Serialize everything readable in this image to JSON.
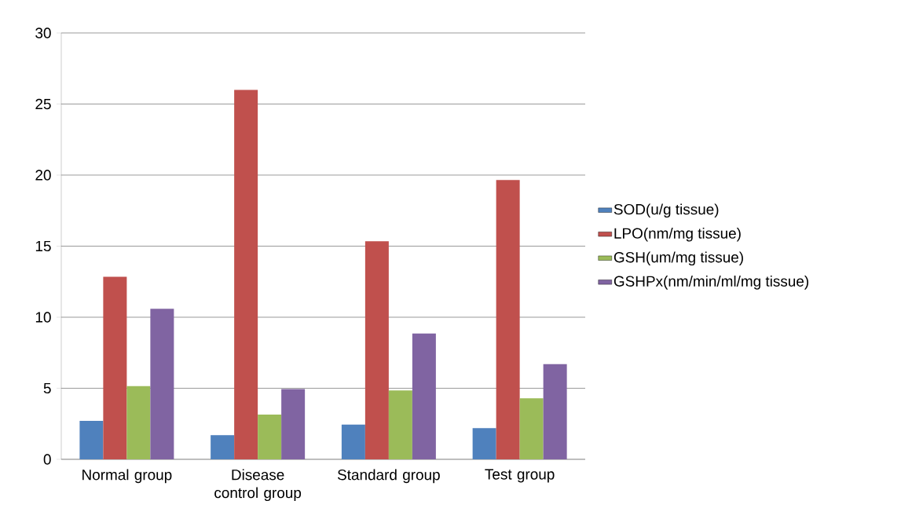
{
  "chart_data": {
    "type": "bar",
    "categories": [
      "Normal group",
      "Disease control group",
      "Standard group",
      "Test group"
    ],
    "series": [
      {
        "name": "SOD(u/g tissue)",
        "color": "#4f81bd",
        "values": [
          2.7,
          1.7,
          2.45,
          2.2
        ]
      },
      {
        "name": "LPO(nm/mg tissue)",
        "color": "#c0504d",
        "values": [
          12.85,
          26.0,
          15.35,
          19.65
        ]
      },
      {
        "name": "GSH(um/mg tissue)",
        "color": "#9bbb59",
        "values": [
          5.15,
          3.15,
          4.85,
          4.3
        ]
      },
      {
        "name": "GSHPx(nm/min/ml/mg tissue)",
        "color": "#8064a2",
        "values": [
          10.6,
          4.95,
          8.85,
          6.7
        ]
      }
    ],
    "ylim": [
      0,
      30
    ],
    "yticks": [
      0,
      5,
      10,
      15,
      20,
      25,
      30
    ],
    "grid": "y",
    "legend": "right"
  }
}
